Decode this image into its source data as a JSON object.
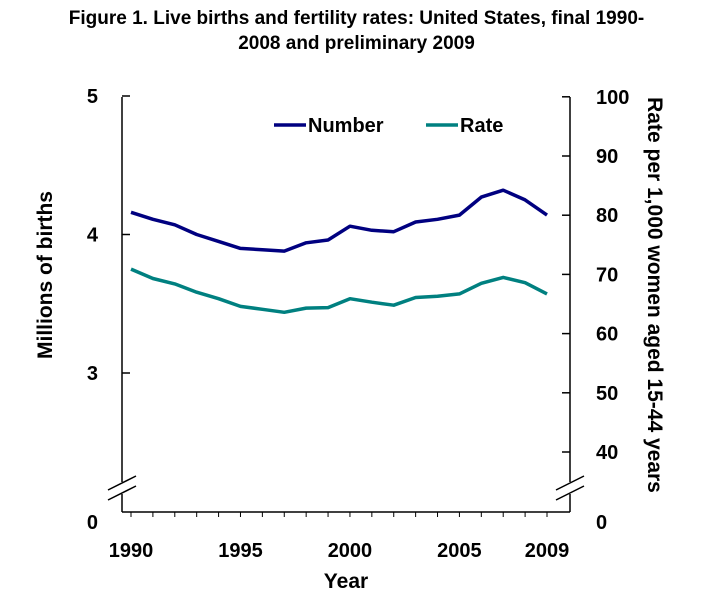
{
  "title_lines": [
    "Figure 1.  Live births and fertility rates: United States, final 1990-",
    "2008 and preliminary 2009"
  ],
  "chart_data": {
    "type": "line",
    "title": "Figure 1.  Live births and fertility rates: United States, final 1990-2008 and preliminary 2009",
    "xlabel": "Year",
    "ylabel": "Millions of births",
    "y2label": "Rate per 1,000 women aged 15-44 years",
    "x": [
      1990,
      1991,
      1992,
      1993,
      1994,
      1995,
      1996,
      1997,
      1998,
      1999,
      2000,
      2001,
      2002,
      2003,
      2004,
      2005,
      2006,
      2007,
      2008,
      2009
    ],
    "x_ticks": [
      "1990",
      "1995",
      "2000",
      "2005",
      "2009"
    ],
    "y_left_ticks": [
      "5",
      "4",
      "3",
      "0"
    ],
    "y_right_ticks": [
      "100",
      "90",
      "80",
      "70",
      "60",
      "50",
      "40",
      "0"
    ],
    "ylim_left": [
      0,
      5
    ],
    "ylim_right": [
      0,
      100
    ],
    "axis_break": true,
    "grid": false,
    "legend_position": "top",
    "series": [
      {
        "name": "Number",
        "axis": "left",
        "color": "#000080",
        "values": [
          4.16,
          4.11,
          4.07,
          4.0,
          3.95,
          3.9,
          3.89,
          3.88,
          3.94,
          3.96,
          4.06,
          4.03,
          4.02,
          4.09,
          4.11,
          4.14,
          4.27,
          4.32,
          4.25,
          4.14
        ]
      },
      {
        "name": "Rate",
        "axis": "right",
        "color": "#008080",
        "values": [
          70.9,
          69.3,
          68.4,
          67.0,
          65.9,
          64.6,
          64.1,
          63.6,
          64.3,
          64.4,
          65.9,
          65.3,
          64.8,
          66.1,
          66.3,
          66.7,
          68.5,
          69.5,
          68.6,
          66.7
        ]
      }
    ]
  }
}
